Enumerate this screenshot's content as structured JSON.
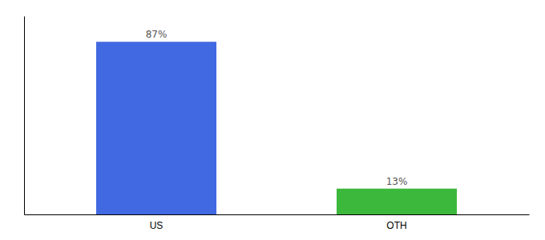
{
  "chart_data": {
    "type": "bar",
    "categories": [
      "US",
      "OTH"
    ],
    "values": [
      87,
      13
    ],
    "value_labels": [
      "87%",
      "13%"
    ],
    "colors": [
      "#4169e1",
      "#3cb83c"
    ],
    "ylim": [
      0,
      100
    ],
    "data_labels": true,
    "tick_labels": "x"
  }
}
